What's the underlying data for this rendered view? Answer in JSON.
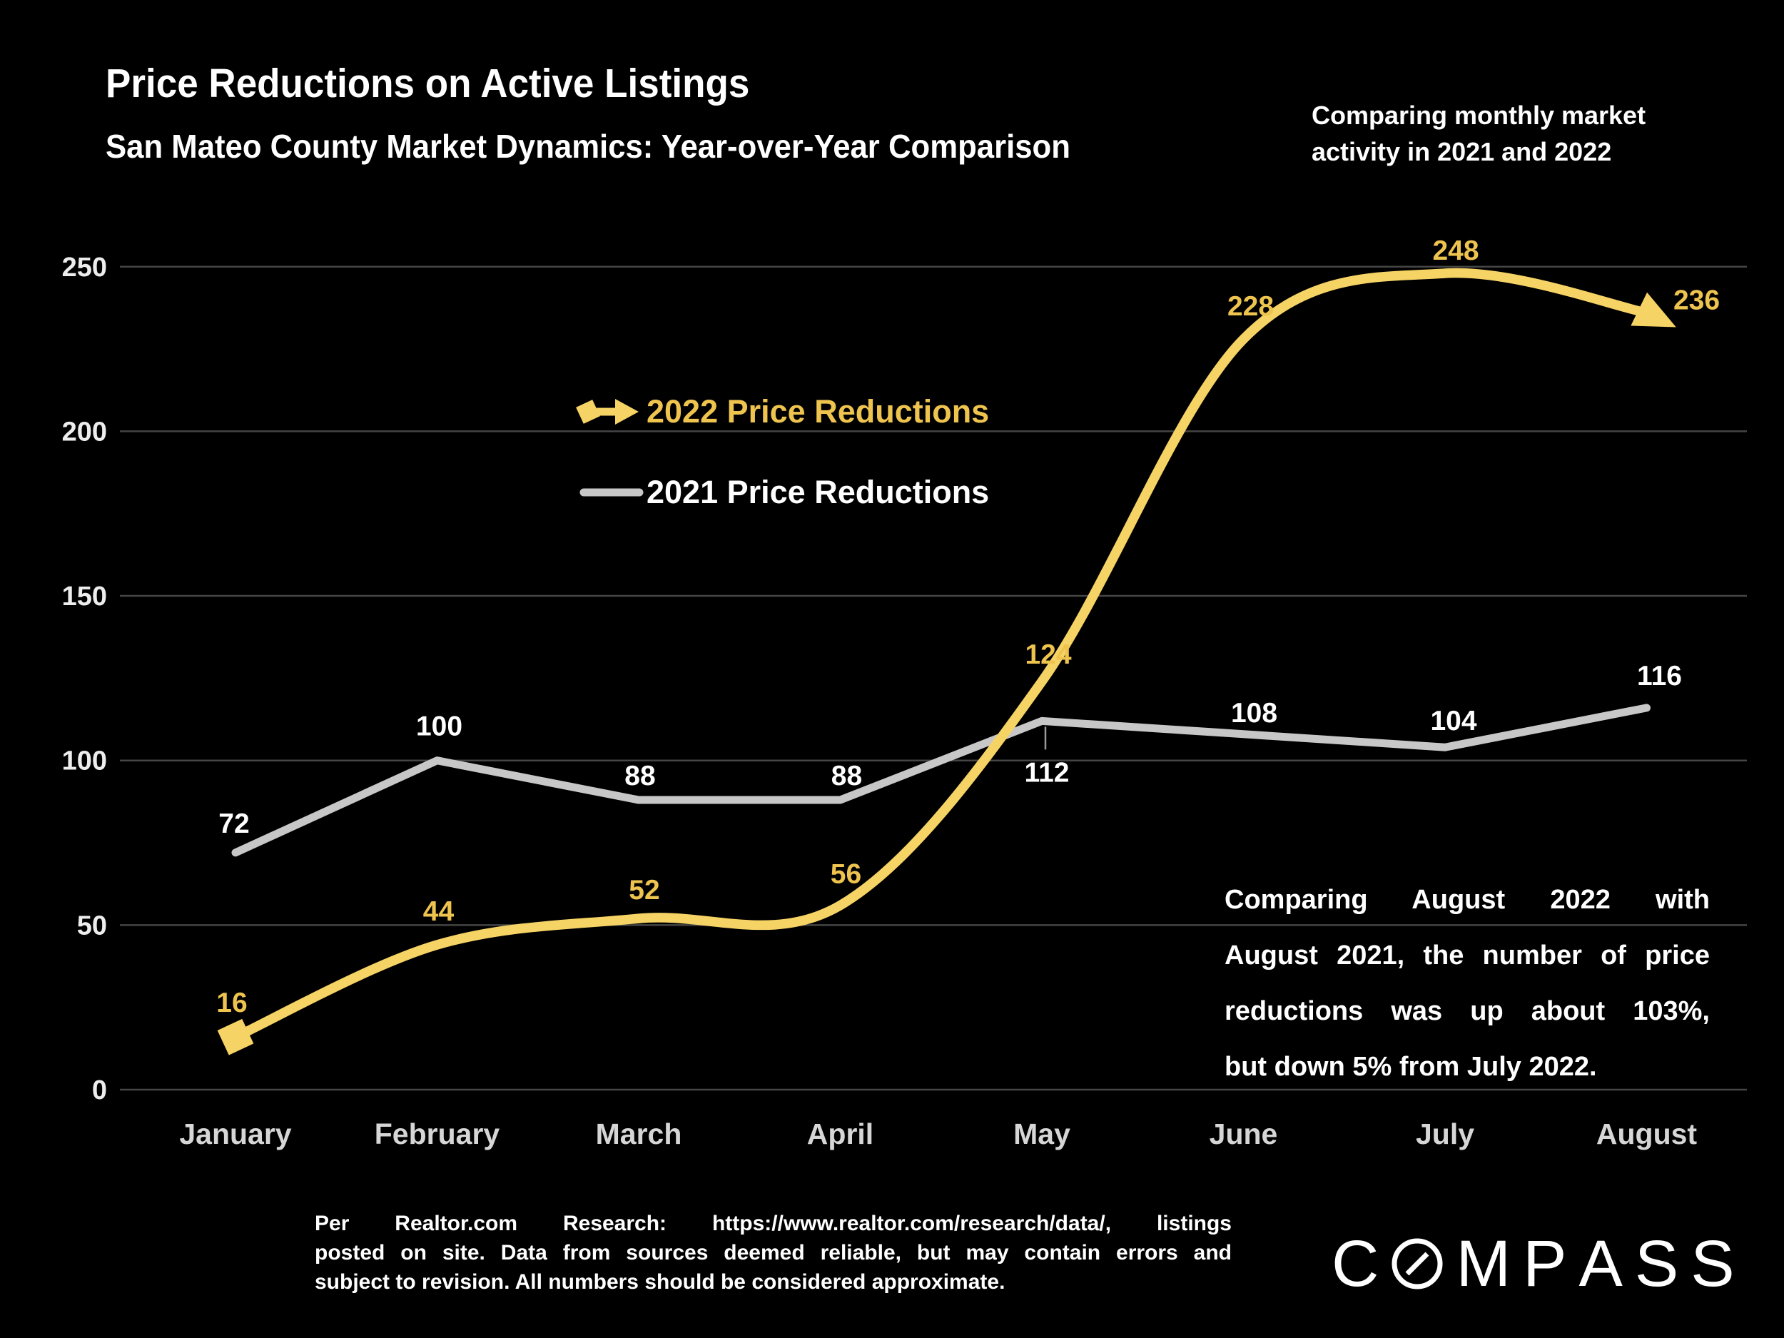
{
  "title": "Price Reductions on Active Listings",
  "subtitle": "San Mateo County Market Dynamics: Year-over-Year Comparison",
  "note_lines": [
    "Comparing monthly market",
    "activity in 2021 and 2022"
  ],
  "annotation_lines": [
    "Comparing August 2022 with",
    "August 2021, the number of price",
    "reductions was up about 103%,",
    "but down 5% from July 2022."
  ],
  "footer_lines": [
    "Per Realtor.com Research: https://www.realtor.com/research/data/, listings",
    "posted on site. Data from sources deemed reliable, but may contain errors and",
    "subject to revision. All numbers should be considered approximate."
  ],
  "logo": {
    "text": "COMPASS"
  },
  "colors": {
    "background": "#000000",
    "gridline": "#454545",
    "axis_text": "#EDEDED",
    "month_text": "#D6D6D6",
    "series_2022_line": "#F6D365",
    "series_2022_label": "#EEC44F",
    "series_2021_line": "#C7C7C7",
    "series_2021_label": "#FFFFFF"
  },
  "chart_data": {
    "type": "line",
    "title": "Price Reductions on Active Listings",
    "categories": [
      "January",
      "February",
      "March",
      "April",
      "May",
      "June",
      "July",
      "August"
    ],
    "series": [
      {
        "name": "2022 Price Reductions",
        "values": [
          16,
          44,
          52,
          56,
          124,
          228,
          248,
          236
        ],
        "color": "#F6D365",
        "label_color": "#EEC44F",
        "style": "smooth-with-arrow",
        "marker_start": "diamond",
        "marker_end": "arrow"
      },
      {
        "name": "2021 Price Reductions",
        "values": [
          72,
          100,
          88,
          88,
          112,
          108,
          104,
          116
        ],
        "color": "#C7C7C7",
        "label_color": "#FFFFFF",
        "style": "straight",
        "marker_start": "none",
        "marker_end": "none"
      }
    ],
    "xlabel": "",
    "ylabel": "",
    "yticks": [
      0,
      50,
      100,
      150,
      200,
      250
    ],
    "ylim": [
      0,
      260
    ],
    "grid": true,
    "data_labels": true,
    "legend_position": "upper-center-left"
  }
}
